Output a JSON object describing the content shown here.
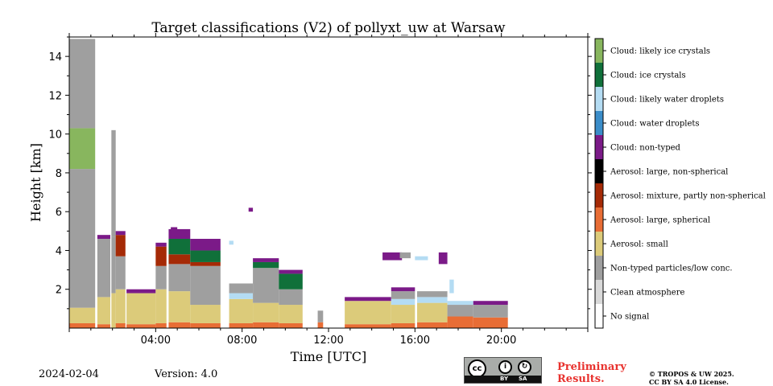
{
  "title": "Target classifications (V2) of pollyxt_uw at Warsaw",
  "footer": {
    "date": "2024-02-04",
    "version": "Version: 4.0",
    "preliminary": "Preliminary\nResults.",
    "copyright": "© TROPOS & UW 2025.\nCC BY SA 4.0 License.",
    "license_badge": {
      "cc": "cc",
      "by": "BY",
      "sa": "SA"
    }
  },
  "chart_data": {
    "type": "heatmap",
    "title": "Target classifications (V2) of pollyxt_uw at Warsaw",
    "xlabel": "Time [UTC]",
    "ylabel": "Height [km]",
    "xlim": [
      0,
      24
    ],
    "ylim": [
      0,
      15
    ],
    "xticks": [
      {
        "v": 4,
        "label": "04:00"
      },
      {
        "v": 8,
        "label": "08:00"
      },
      {
        "v": 12,
        "label": "12:00"
      },
      {
        "v": 16,
        "label": "16:00"
      },
      {
        "v": 20,
        "label": "20:00"
      }
    ],
    "yticks": [
      {
        "v": 2,
        "label": "2"
      },
      {
        "v": 4,
        "label": "4"
      },
      {
        "v": 6,
        "label": "6"
      },
      {
        "v": 8,
        "label": "8"
      },
      {
        "v": 10,
        "label": "10"
      },
      {
        "v": 12,
        "label": "12"
      },
      {
        "v": 14,
        "label": "14"
      }
    ],
    "categories": [
      {
        "key": "no_signal",
        "label": "No signal",
        "color": "#ffffff"
      },
      {
        "key": "clean",
        "label": "Clean atmosphere",
        "color": "#d9d9d9"
      },
      {
        "key": "nontyped",
        "label": "Non-typed particles/low conc.",
        "color": "#9f9f9f"
      },
      {
        "key": "small",
        "label": "Aerosol: small",
        "color": "#dccb7a"
      },
      {
        "key": "large_sph",
        "label": "Aerosol: large, spherical",
        "color": "#e86d35"
      },
      {
        "key": "mixture",
        "label": "Aerosol: mixture, partly non-spherical",
        "color": "#a52a06"
      },
      {
        "key": "large_nonsph",
        "label": "Aerosol: large, non-spherical",
        "color": "#000000"
      },
      {
        "key": "cloud_nontyped",
        "label": "Cloud: non-typed",
        "color": "#7b1a88"
      },
      {
        "key": "water",
        "label": "Cloud: water droplets",
        "color": "#3b8dc9"
      },
      {
        "key": "likely_water",
        "label": "Cloud: likely water droplets",
        "color": "#b4dcf3"
      },
      {
        "key": "ice",
        "label": "Cloud: ice crystals",
        "color": "#10703a"
      },
      {
        "key": "likely_ice",
        "label": "Cloud: likely ice crystals",
        "color": "#88b65e"
      }
    ],
    "profiles": [
      {
        "t0": 0.0,
        "t1": 1.2,
        "layers": [
          [
            0.0,
            0.25,
            "large_sph"
          ],
          [
            0.25,
            1.05,
            "small"
          ],
          [
            1.05,
            8.2,
            "nontyped"
          ],
          [
            8.2,
            10.3,
            "likely_ice"
          ],
          [
            10.3,
            14.9,
            "nontyped"
          ]
        ]
      },
      {
        "t0": 1.3,
        "t1": 1.9,
        "layers": [
          [
            0.0,
            0.2,
            "large_sph"
          ],
          [
            0.2,
            1.6,
            "small"
          ],
          [
            1.6,
            4.6,
            "nontyped"
          ],
          [
            4.6,
            4.8,
            "cloud_nontyped"
          ]
        ]
      },
      {
        "t0": 1.95,
        "t1": 2.15,
        "layers": [
          [
            0.0,
            1.8,
            "small"
          ],
          [
            1.8,
            4.7,
            "nontyped"
          ],
          [
            4.7,
            10.2,
            "nontyped"
          ]
        ]
      },
      {
        "t0": 2.15,
        "t1": 2.6,
        "layers": [
          [
            0.0,
            0.25,
            "large_sph"
          ],
          [
            0.25,
            2.0,
            "small"
          ],
          [
            2.0,
            3.7,
            "nontyped"
          ],
          [
            3.7,
            4.8,
            "mixture"
          ],
          [
            4.8,
            5.0,
            "cloud_nontyped"
          ]
        ]
      },
      {
        "t0": 2.65,
        "t1": 4.0,
        "layers": [
          [
            0.0,
            0.2,
            "large_sph"
          ],
          [
            0.2,
            1.8,
            "small"
          ],
          [
            1.8,
            2.0,
            "cloud_nontyped"
          ]
        ]
      },
      {
        "t0": 4.0,
        "t1": 4.5,
        "layers": [
          [
            0.0,
            0.25,
            "large_sph"
          ],
          [
            0.25,
            2.0,
            "small"
          ],
          [
            2.0,
            3.2,
            "nontyped"
          ],
          [
            3.2,
            4.2,
            "mixture"
          ],
          [
            4.2,
            4.4,
            "cloud_nontyped"
          ]
        ]
      },
      {
        "t0": 4.6,
        "t1": 5.6,
        "layers": [
          [
            0.0,
            0.3,
            "large_sph"
          ],
          [
            0.3,
            1.9,
            "small"
          ],
          [
            1.9,
            3.3,
            "nontyped"
          ],
          [
            3.3,
            3.8,
            "mixture"
          ],
          [
            3.8,
            4.6,
            "ice"
          ],
          [
            4.6,
            5.1,
            "cloud_nontyped"
          ]
        ]
      },
      {
        "t0": 5.6,
        "t1": 7.0,
        "layers": [
          [
            0.0,
            0.25,
            "large_sph"
          ],
          [
            0.25,
            1.2,
            "small"
          ],
          [
            1.2,
            3.2,
            "nontyped"
          ],
          [
            3.2,
            3.4,
            "mixture"
          ],
          [
            3.4,
            4.0,
            "ice"
          ],
          [
            4.0,
            4.6,
            "cloud_nontyped"
          ]
        ]
      },
      {
        "t0": 7.4,
        "t1": 8.5,
        "layers": [
          [
            0.0,
            0.25,
            "large_sph"
          ],
          [
            0.25,
            1.5,
            "small"
          ],
          [
            1.5,
            1.8,
            "likely_water"
          ],
          [
            1.8,
            2.3,
            "nontyped"
          ]
        ]
      },
      {
        "t0": 8.5,
        "t1": 9.7,
        "layers": [
          [
            0.0,
            0.3,
            "large_sph"
          ],
          [
            0.3,
            1.3,
            "small"
          ],
          [
            1.3,
            3.1,
            "nontyped"
          ],
          [
            3.1,
            3.4,
            "ice"
          ],
          [
            3.4,
            3.6,
            "cloud_nontyped"
          ]
        ]
      },
      {
        "t0": 9.7,
        "t1": 10.8,
        "layers": [
          [
            0.0,
            0.25,
            "large_sph"
          ],
          [
            0.25,
            1.2,
            "small"
          ],
          [
            1.2,
            2.0,
            "nontyped"
          ],
          [
            2.0,
            2.8,
            "ice"
          ],
          [
            2.8,
            3.0,
            "cloud_nontyped"
          ]
        ]
      },
      {
        "t0": 11.5,
        "t1": 11.75,
        "layers": [
          [
            0.0,
            0.3,
            "large_sph"
          ],
          [
            0.3,
            0.9,
            "nontyped"
          ]
        ]
      },
      {
        "t0": 12.75,
        "t1": 14.9,
        "layers": [
          [
            0.0,
            0.2,
            "large_sph"
          ],
          [
            0.2,
            1.4,
            "small"
          ],
          [
            1.4,
            1.6,
            "cloud_nontyped"
          ]
        ]
      },
      {
        "t0": 14.9,
        "t1": 16.0,
        "layers": [
          [
            0.0,
            0.25,
            "large_sph"
          ],
          [
            0.25,
            1.2,
            "small"
          ],
          [
            1.2,
            1.5,
            "likely_water"
          ],
          [
            1.5,
            1.9,
            "nontyped"
          ],
          [
            1.9,
            2.1,
            "cloud_nontyped"
          ]
        ]
      },
      {
        "t0": 16.1,
        "t1": 17.5,
        "layers": [
          [
            0.0,
            0.3,
            "large_sph"
          ],
          [
            0.3,
            1.3,
            "small"
          ],
          [
            1.3,
            1.6,
            "likely_water"
          ],
          [
            1.6,
            1.9,
            "nontyped"
          ]
        ]
      },
      {
        "t0": 17.5,
        "t1": 18.7,
        "layers": [
          [
            0.0,
            0.6,
            "large_sph"
          ],
          [
            0.6,
            1.2,
            "nontyped"
          ],
          [
            1.2,
            1.4,
            "likely_water"
          ]
        ]
      },
      {
        "t0": 18.7,
        "t1": 20.3,
        "layers": [
          [
            0.0,
            0.55,
            "large_sph"
          ],
          [
            0.55,
            1.2,
            "nontyped"
          ],
          [
            1.2,
            1.4,
            "cloud_nontyped"
          ]
        ]
      }
    ],
    "patches": [
      {
        "t0": 4.7,
        "t1": 5.0,
        "h0": 4.9,
        "h1": 5.2,
        "cat": "cloud_nontyped"
      },
      {
        "t0": 7.4,
        "t1": 7.6,
        "h0": 4.3,
        "h1": 4.5,
        "cat": "likely_water"
      },
      {
        "t0": 8.3,
        "t1": 8.5,
        "h0": 6.0,
        "h1": 6.2,
        "cat": "cloud_nontyped"
      },
      {
        "t0": 14.5,
        "t1": 15.4,
        "h0": 3.5,
        "h1": 3.9,
        "cat": "cloud_nontyped"
      },
      {
        "t0": 15.3,
        "t1": 15.8,
        "h0": 3.6,
        "h1": 3.9,
        "cat": "nontyped"
      },
      {
        "t0": 16.0,
        "t1": 16.6,
        "h0": 3.5,
        "h1": 3.7,
        "cat": "likely_water"
      },
      {
        "t0": 17.1,
        "t1": 17.5,
        "h0": 3.3,
        "h1": 3.9,
        "cat": "cloud_nontyped"
      },
      {
        "t0": 17.6,
        "t1": 17.8,
        "h0": 1.8,
        "h1": 2.5,
        "cat": "likely_water"
      }
    ]
  }
}
